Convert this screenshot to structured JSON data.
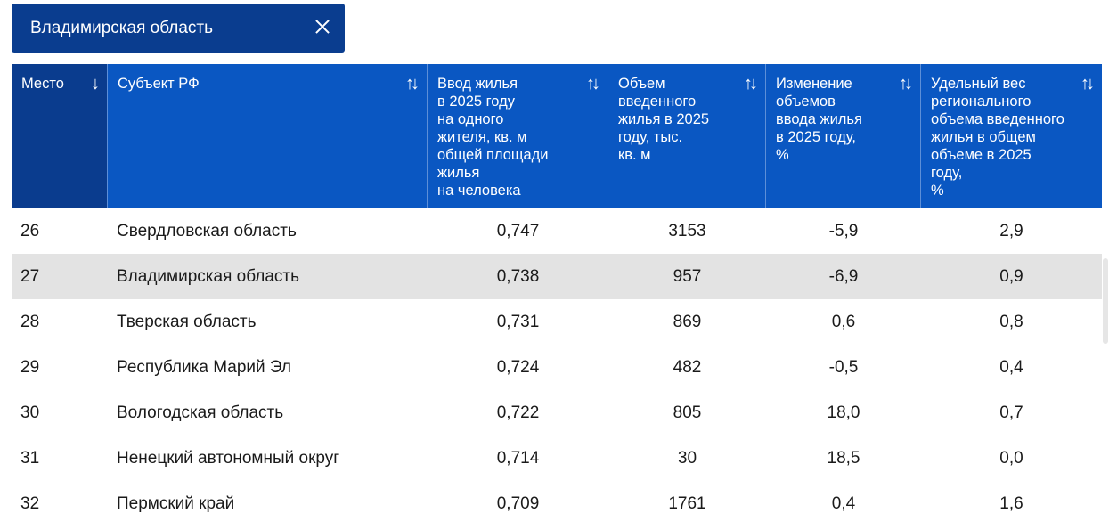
{
  "filter_chip": {
    "label": "Владимирская область"
  },
  "table": {
    "headers": [
      {
        "label": "Место"
      },
      {
        "label": "Субъект РФ"
      },
      {
        "label": "Ввод жилья\nв 2025 году\nна одного\nжителя, кв. м\nобщей площади\nжилья\nна человека"
      },
      {
        "label": "Объем\nвведенного\nжилья в 2025\nгоду, тыс.\nкв. м"
      },
      {
        "label": "Изменение\nобъемов\nввода жилья\nв 2025 году,\n%"
      },
      {
        "label": "Удельный вес\nрегионального\nобъема введенного\nжилья в общем\nобъеме в 2025 году,\n%"
      }
    ],
    "rows": [
      {
        "place": "26",
        "region": "Свердловская область",
        "per_capita": "0,747",
        "volume": "3153",
        "change": "-5,9",
        "share": "2,9"
      },
      {
        "place": "27",
        "region": "Владимирская область",
        "per_capita": "0,738",
        "volume": "957",
        "change": "-6,9",
        "share": "0,9"
      },
      {
        "place": "28",
        "region": "Тверская область",
        "per_capita": "0,731",
        "volume": "869",
        "change": "0,6",
        "share": "0,8"
      },
      {
        "place": "29",
        "region": "Республика Марий Эл",
        "per_capita": "0,724",
        "volume": "482",
        "change": "-0,5",
        "share": "0,4"
      },
      {
        "place": "30",
        "region": "Вологодская область",
        "per_capita": "0,722",
        "volume": "805",
        "change": "18,0",
        "share": "0,7"
      },
      {
        "place": "31",
        "region": "Ненецкий автономный округ",
        "per_capita": "0,714",
        "volume": "30",
        "change": "18,5",
        "share": "0,0"
      },
      {
        "place": "32",
        "region": "Пермский край",
        "per_capita": "0,709",
        "volume": "1761",
        "change": "0,4",
        "share": "1,6"
      }
    ],
    "highlighted_row": "27"
  },
  "colors": {
    "header": "#0a57c2",
    "header_sorted": "#0a3c8e",
    "chip": "#0a3d8f",
    "row_highlight": "#e3e3e3"
  }
}
